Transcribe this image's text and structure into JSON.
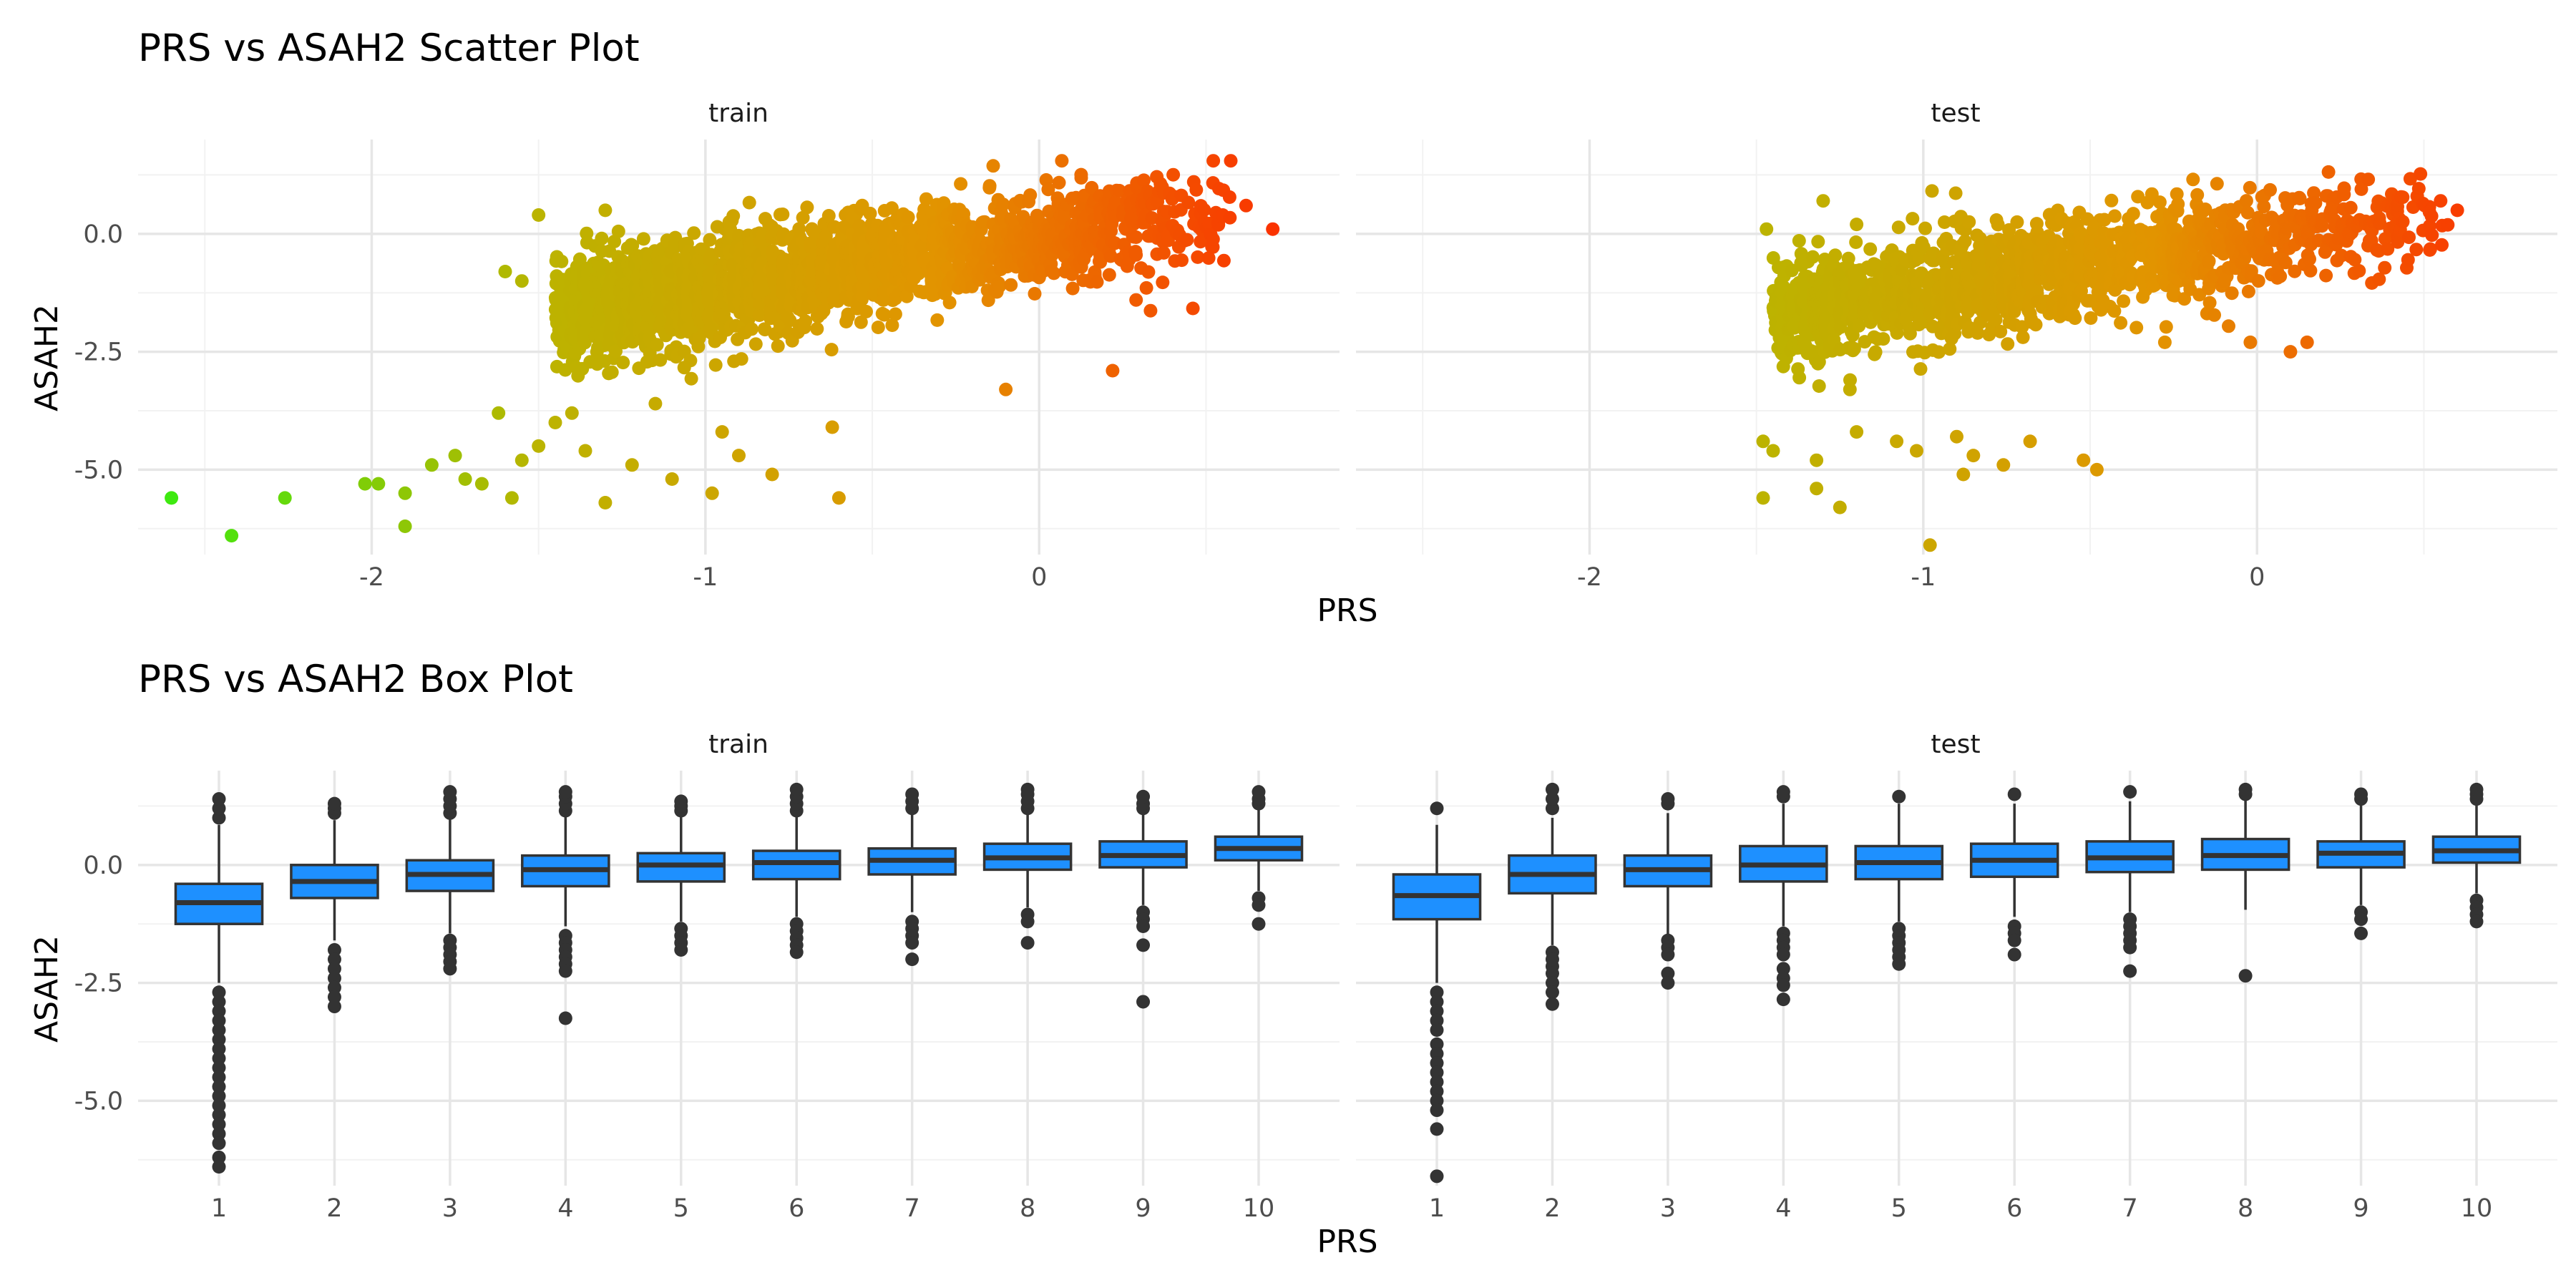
{
  "chart_data": [
    {
      "type": "scatter",
      "title": "PRS vs ASAH2 Scatter Plot",
      "xlabel": "PRS",
      "ylabel": "ASAH2",
      "facets": [
        "train",
        "test"
      ],
      "xlim": [
        -2.7,
        0.9
      ],
      "ylim": [
        -6.8,
        2.0
      ],
      "x_ticks": [
        -2,
        -1,
        0
      ],
      "x_tick_labels": [
        "-2",
        "-1",
        "0"
      ],
      "y_ticks": [
        0,
        -2.5,
        -5
      ],
      "y_tick_labels": [
        "0.0",
        "-2.5",
        "-5.0"
      ],
      "grid": true,
      "color_gradient": [
        "#33ee11",
        "#bbb400",
        "#e29400",
        "#ff2000"
      ],
      "approx_trend": {
        "slope": 1.4,
        "intercept": 0.0
      },
      "panels": [
        {
          "name": "train",
          "n_bulk": 2200,
          "bulk_x_range": [
            -1.45,
            0.6
          ],
          "outlier_points": [
            [
              -2.6,
              -5.6
            ],
            [
              -2.42,
              -6.4
            ],
            [
              -2.26,
              -5.6
            ],
            [
              -2.02,
              -5.3
            ],
            [
              -1.98,
              -5.3
            ],
            [
              -1.9,
              -5.5
            ],
            [
              -1.9,
              -6.2
            ],
            [
              -1.82,
              -4.9
            ],
            [
              -1.75,
              -4.7
            ],
            [
              -1.72,
              -5.2
            ],
            [
              -1.67,
              -5.3
            ],
            [
              -1.62,
              -3.8
            ],
            [
              -1.58,
              -5.6
            ],
            [
              -1.55,
              -4.8
            ],
            [
              -1.5,
              -4.5
            ],
            [
              -1.45,
              -4.0
            ],
            [
              -1.4,
              -3.8
            ],
            [
              -1.36,
              -4.6
            ],
            [
              -1.3,
              -5.7
            ],
            [
              -1.22,
              -4.9
            ],
            [
              -1.15,
              -3.6
            ],
            [
              -1.1,
              -5.2
            ],
            [
              -0.98,
              -5.5
            ],
            [
              -0.9,
              -4.7
            ],
            [
              -0.8,
              -5.1
            ],
            [
              -0.6,
              -5.6
            ],
            [
              -0.62,
              -4.1
            ],
            [
              -0.95,
              -4.2
            ],
            [
              -1.5,
              0.4
            ],
            [
              -1.3,
              0.5
            ],
            [
              -1.55,
              -1.0
            ],
            [
              -1.6,
              -0.8
            ],
            [
              0.7,
              0.1
            ],
            [
              0.22,
              -2.9
            ],
            [
              -0.1,
              -3.3
            ],
            [
              0.55,
              0.4
            ],
            [
              0.62,
              0.6
            ]
          ]
        },
        {
          "name": "test",
          "n_bulk": 1500,
          "bulk_x_range": [
            -1.45,
            0.58
          ],
          "outlier_points": [
            [
              -1.47,
              0.1
            ],
            [
              -1.48,
              -5.6
            ],
            [
              -1.48,
              -4.4
            ],
            [
              -1.45,
              -4.6
            ],
            [
              -1.25,
              -5.8
            ],
            [
              -1.32,
              -5.4
            ],
            [
              -1.32,
              -4.8
            ],
            [
              -1.2,
              -4.2
            ],
            [
              -1.22,
              -3.3
            ],
            [
              -0.98,
              -6.6
            ],
            [
              -1.02,
              -4.6
            ],
            [
              -1.08,
              -4.4
            ],
            [
              -0.9,
              -4.3
            ],
            [
              -0.88,
              -5.1
            ],
            [
              -0.85,
              -4.7
            ],
            [
              -0.76,
              -4.9
            ],
            [
              -0.68,
              -4.4
            ],
            [
              -0.52,
              -4.8
            ],
            [
              -0.48,
              -5.0
            ],
            [
              -1.2,
              0.2
            ],
            [
              -1.3,
              0.7
            ],
            [
              -0.02,
              -2.3
            ],
            [
              0.1,
              -2.5
            ],
            [
              0.15,
              -2.3
            ],
            [
              0.6,
              0.5
            ],
            [
              0.55,
              0.7
            ],
            [
              0.48,
              0.8
            ]
          ]
        }
      ]
    },
    {
      "type": "box",
      "title": "PRS vs ASAH2 Box Plot",
      "xlabel": "PRS",
      "ylabel": "ASAH2",
      "facets": [
        "train",
        "test"
      ],
      "categories": [
        "1",
        "2",
        "3",
        "4",
        "5",
        "6",
        "7",
        "8",
        "9",
        "10"
      ],
      "ylim": [
        -6.8,
        2.0
      ],
      "y_ticks": [
        0,
        -2.5,
        -5
      ],
      "y_tick_labels": [
        "0.0",
        "-2.5",
        "-5.0"
      ],
      "fill_color": "#1e90ff",
      "line_color": "#333333",
      "grid": true,
      "panels": [
        {
          "name": "train",
          "boxes": [
            {
              "q1": -1.25,
              "median": -0.8,
              "q3": -0.4,
              "lo": -2.5,
              "hi": 0.85,
              "out_lo": [
                -2.7,
                -2.9,
                -3.1,
                -3.3,
                -3.5,
                -3.7,
                -3.9,
                -4.1,
                -4.3,
                -4.5,
                -4.7,
                -4.9,
                -5.1,
                -5.3,
                -5.5,
                -5.7,
                -5.9,
                -6.2,
                -6.4
              ],
              "out_hi": [
                1.0,
                1.2,
                1.4
              ]
            },
            {
              "q1": -0.7,
              "median": -0.35,
              "q3": 0.0,
              "lo": -1.6,
              "hi": 0.95,
              "out_lo": [
                -1.8,
                -2.0,
                -2.2,
                -2.4,
                -2.6,
                -2.8,
                -3.0
              ],
              "out_hi": [
                1.1,
                1.2,
                1.3
              ]
            },
            {
              "q1": -0.55,
              "median": -0.2,
              "q3": 0.1,
              "lo": -1.45,
              "hi": 1.0,
              "out_lo": [
                -1.6,
                -1.75,
                -1.9,
                -2.05,
                -2.2
              ],
              "out_hi": [
                1.1,
                1.25,
                1.4,
                1.55
              ]
            },
            {
              "q1": -0.45,
              "median": -0.1,
              "q3": 0.2,
              "lo": -1.3,
              "hi": 1.05,
              "out_lo": [
                -1.5,
                -1.65,
                -1.8,
                -1.95,
                -2.1,
                -2.25,
                -3.25
              ],
              "out_hi": [
                1.15,
                1.3,
                1.45,
                1.55
              ]
            },
            {
              "q1": -0.35,
              "median": 0.0,
              "q3": 0.25,
              "lo": -1.2,
              "hi": 1.05,
              "out_lo": [
                -1.35,
                -1.5,
                -1.65,
                -1.8
              ],
              "out_hi": [
                1.15,
                1.25,
                1.35
              ]
            },
            {
              "q1": -0.3,
              "median": 0.05,
              "q3": 0.3,
              "lo": -1.1,
              "hi": 1.05,
              "out_lo": [
                -1.25,
                -1.4,
                -1.55,
                -1.7,
                -1.85
              ],
              "out_hi": [
                1.15,
                1.3,
                1.45,
                1.6
              ]
            },
            {
              "q1": -0.2,
              "median": 0.1,
              "q3": 0.35,
              "lo": -1.0,
              "hi": 1.1,
              "out_lo": [
                -1.2,
                -1.35,
                -1.5,
                -1.65,
                -2.0
              ],
              "out_hi": [
                1.2,
                1.35,
                1.5
              ]
            },
            {
              "q1": -0.1,
              "median": 0.15,
              "q3": 0.45,
              "lo": -0.9,
              "hi": 1.1,
              "out_lo": [
                -1.05,
                -1.2,
                -1.65
              ],
              "out_hi": [
                1.2,
                1.35,
                1.5,
                1.6
              ]
            },
            {
              "q1": -0.05,
              "median": 0.2,
              "q3": 0.5,
              "lo": -0.85,
              "hi": 1.1,
              "out_lo": [
                -1.0,
                -1.15,
                -1.3,
                -1.7,
                -2.9
              ],
              "out_hi": [
                1.2,
                1.3,
                1.45
              ]
            },
            {
              "q1": 0.1,
              "median": 0.35,
              "q3": 0.6,
              "lo": -0.55,
              "hi": 1.2,
              "out_lo": [
                -0.7,
                -0.85,
                -1.25
              ],
              "out_hi": [
                1.3,
                1.4,
                1.55
              ]
            }
          ]
        },
        {
          "name": "test",
          "boxes": [
            {
              "q1": -1.15,
              "median": -0.65,
              "q3": -0.2,
              "lo": -2.5,
              "hi": 0.85,
              "out_lo": [
                -2.7,
                -2.9,
                -3.1,
                -3.3,
                -3.5,
                -3.8,
                -4.0,
                -4.2,
                -4.4,
                -4.6,
                -4.8,
                -5.0,
                -5.2,
                -5.6,
                -6.6
              ],
              "out_hi": [
                1.2
              ]
            },
            {
              "q1": -0.6,
              "median": -0.2,
              "q3": 0.2,
              "lo": -1.7,
              "hi": 1.0,
              "out_lo": [
                -1.85,
                -2.0,
                -2.15,
                -2.3,
                -2.5,
                -2.7,
                -2.95
              ],
              "out_hi": [
                1.2,
                1.4,
                1.6
              ]
            },
            {
              "q1": -0.45,
              "median": -0.1,
              "q3": 0.2,
              "lo": -1.5,
              "hi": 1.1,
              "out_lo": [
                -1.6,
                -1.75,
                -1.9,
                -2.3,
                -2.5
              ],
              "out_hi": [
                1.3,
                1.4
              ]
            },
            {
              "q1": -0.35,
              "median": 0.0,
              "q3": 0.4,
              "lo": -1.3,
              "hi": 1.3,
              "out_lo": [
                -1.45,
                -1.6,
                -1.75,
                -1.9,
                -2.2,
                -2.4,
                -2.55,
                -2.85
              ],
              "out_hi": [
                1.45,
                1.55
              ]
            },
            {
              "q1": -0.3,
              "median": 0.05,
              "q3": 0.4,
              "lo": -1.2,
              "hi": 1.3,
              "out_lo": [
                -1.35,
                -1.5,
                -1.65,
                -1.8,
                -1.95,
                -2.1
              ],
              "out_hi": [
                1.45
              ]
            },
            {
              "q1": -0.25,
              "median": 0.1,
              "q3": 0.45,
              "lo": -1.1,
              "hi": 1.3,
              "out_lo": [
                -1.3,
                -1.45,
                -1.6,
                -1.9
              ],
              "out_hi": [
                1.5
              ]
            },
            {
              "q1": -0.15,
              "median": 0.15,
              "q3": 0.5,
              "lo": -1.0,
              "hi": 1.35,
              "out_lo": [
                -1.15,
                -1.3,
                -1.45,
                -1.6,
                -1.75,
                -2.25
              ],
              "out_hi": [
                1.55
              ]
            },
            {
              "q1": -0.1,
              "median": 0.2,
              "q3": 0.55,
              "lo": -0.95,
              "hi": 1.4,
              "out_lo": [
                -2.35
              ],
              "out_hi": [
                1.5,
                1.6
              ]
            },
            {
              "q1": -0.05,
              "median": 0.25,
              "q3": 0.5,
              "lo": -0.85,
              "hi": 1.3,
              "out_lo": [
                -1.0,
                -1.15,
                -1.45
              ],
              "out_hi": [
                1.4,
                1.5
              ]
            },
            {
              "q1": 0.05,
              "median": 0.3,
              "q3": 0.6,
              "lo": -0.6,
              "hi": 1.3,
              "out_lo": [
                -0.75,
                -0.9,
                -1.05,
                -1.2
              ],
              "out_hi": [
                1.4,
                1.5,
                1.6
              ]
            }
          ]
        }
      ]
    }
  ]
}
